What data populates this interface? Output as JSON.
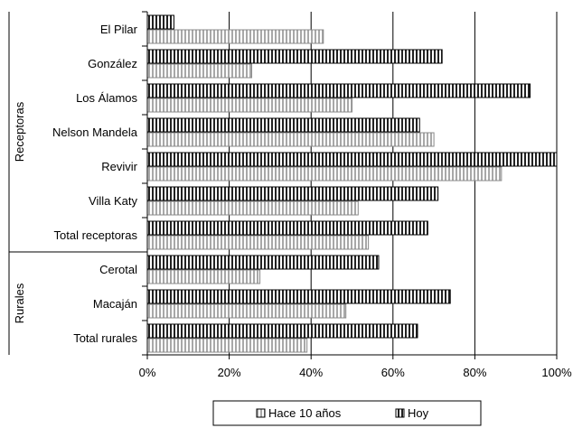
{
  "chart_data": {
    "type": "bar",
    "orientation": "horizontal",
    "categories": [
      "El Pilar",
      "González",
      "Los Álamos",
      "Nelson Mandela",
      "Revivir",
      "Villa Katy",
      "Total receptoras",
      "Cerotal",
      "Macaján",
      "Total rurales"
    ],
    "groups": [
      {
        "label": "Receptoras",
        "categories": [
          "El Pilar",
          "González",
          "Los Álamos",
          "Nelson Mandela",
          "Revivir",
          "Villa Katy",
          "Total receptoras"
        ]
      },
      {
        "label": "Rurales",
        "categories": [
          "Cerotal",
          "Macaján",
          "Total rurales"
        ]
      }
    ],
    "series": [
      {
        "name": "Hace 10 años",
        "values": [
          43,
          25.5,
          50,
          70,
          86.5,
          51.5,
          54,
          27.5,
          48.5,
          39
        ],
        "pattern": "vertical-light"
      },
      {
        "name": "Hoy",
        "values": [
          6.5,
          72,
          93.5,
          66.5,
          100,
          71,
          68.5,
          56.5,
          74,
          66
        ],
        "pattern": "vertical-dark"
      }
    ],
    "xlim": [
      0,
      100
    ],
    "xticks": [
      "0%",
      "20%",
      "40%",
      "60%",
      "80%",
      "100%"
    ],
    "grid": "vertical",
    "legend_position": "bottom"
  }
}
